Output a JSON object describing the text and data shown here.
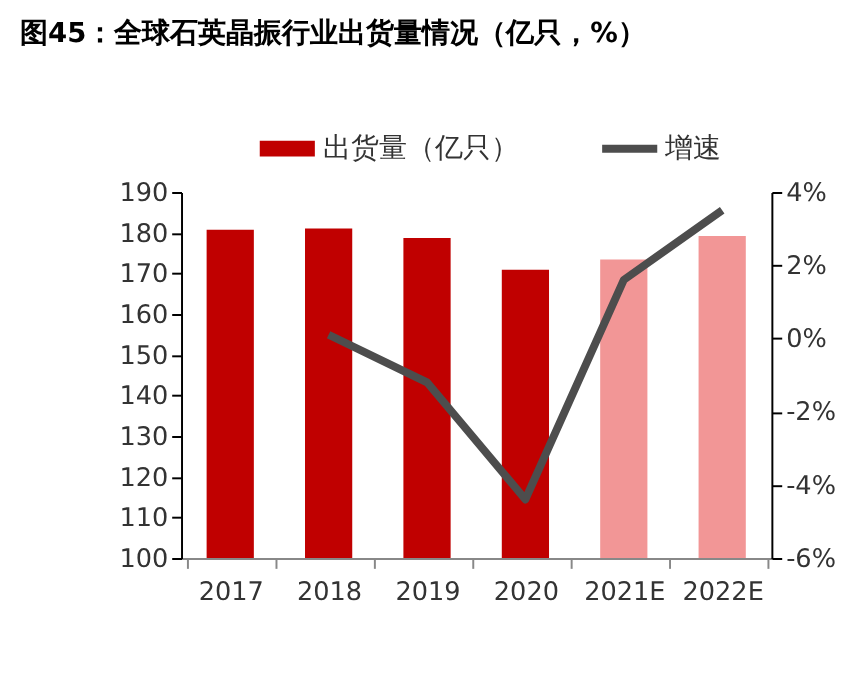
{
  "chart_data": {
    "type": "bar",
    "title": "图45：全球石英晶振行业出货量情况（亿只，%）",
    "categories": [
      "2017",
      "2018",
      "2019",
      "2020",
      "2021E",
      "2022E"
    ],
    "series": [
      {
        "name": "出货量（亿只）",
        "color": "#c00000",
        "colors": [
          "#c00000",
          "#c00000",
          "#c00000",
          "#c00000",
          "#f29696",
          "#f29696"
        ],
        "values": [
          180.7,
          181.0,
          178.7,
          170.9,
          173.4,
          179.2
        ]
      },
      {
        "name": "增速",
        "type": "line",
        "axis": "y2",
        "color": "#4d4d4d",
        "values": [
          null,
          0.1,
          -1.2,
          -4.4,
          1.6,
          3.5
        ]
      }
    ],
    "ylim": [
      100,
      190
    ],
    "yticks": [
      100,
      110,
      120,
      130,
      140,
      150,
      160,
      170,
      180,
      190
    ],
    "y2lim": [
      -6,
      4
    ],
    "y2ticks": [
      {
        "value": -6,
        "label": "-6%"
      },
      {
        "value": -4,
        "label": "-4%"
      },
      {
        "value": -2,
        "label": "-2%"
      },
      {
        "value": 0,
        "label": "0%"
      },
      {
        "value": 2,
        "label": "2%"
      },
      {
        "value": 4,
        "label": "4%"
      }
    ],
    "grid": false,
    "legend": "top",
    "line_style": "solid",
    "marker": "none"
  }
}
